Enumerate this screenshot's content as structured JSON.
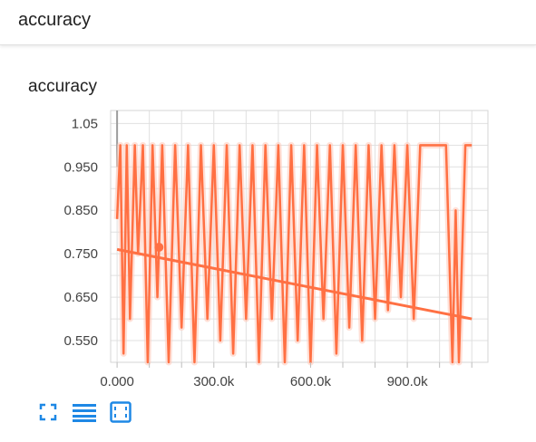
{
  "header": {
    "title": "accuracy"
  },
  "card": {
    "title": "accuracy"
  },
  "colors": {
    "series": "#ff7043",
    "series_faint": "#ffccbc",
    "icon": "#1e88e5",
    "grid": "#e0e0e0"
  },
  "toolbar": {
    "icons": [
      "fullscreen-icon",
      "data-table-icon",
      "fit-domain-icon"
    ]
  },
  "chart_data": {
    "type": "line",
    "title": "accuracy",
    "xlabel": "",
    "ylabel": "",
    "xlim": [
      -20000,
      1150000
    ],
    "ylim": [
      0.5,
      1.08
    ],
    "x_ticks": [
      0,
      300000,
      600000,
      900000
    ],
    "x_tick_labels": [
      "0.000",
      "300.0k",
      "600.0k",
      "900.0k"
    ],
    "y_ticks": [
      0.55,
      0.65,
      0.75,
      0.85,
      0.95,
      1.05
    ],
    "y_tick_labels": [
      "0.550",
      "0.650",
      "0.750",
      "0.850",
      "0.950",
      "1.05"
    ],
    "grid": true,
    "series": [
      {
        "style": "smoothed",
        "x": [
          0,
          10000,
          20000,
          30000,
          40000,
          55000,
          65000,
          80000,
          95000,
          110000,
          125000,
          140000,
          160000,
          180000,
          200000,
          220000,
          240000,
          260000,
          280000,
          300000,
          320000,
          340000,
          360000,
          380000,
          400000,
          420000,
          440000,
          460000,
          480000,
          500000,
          520000,
          540000,
          560000,
          580000,
          600000,
          620000,
          640000,
          660000,
          680000,
          700000,
          720000,
          740000,
          760000,
          780000,
          800000,
          820000,
          840000,
          860000,
          880000,
          900000,
          920000,
          940000,
          960000,
          980000,
          1000000,
          1020000,
          1040000,
          1050000,
          1060000,
          1080000,
          1100000
        ],
        "y": [
          0.83,
          1.0,
          0.52,
          1.0,
          0.6,
          1.0,
          0.75,
          1.0,
          0.5,
          1.0,
          0.65,
          1.0,
          0.5,
          1.0,
          0.58,
          1.0,
          0.5,
          1.0,
          0.6,
          1.0,
          0.55,
          1.0,
          0.52,
          1.0,
          0.6,
          1.0,
          0.5,
          1.0,
          0.6,
          1.0,
          0.5,
          1.0,
          0.55,
          1.0,
          0.5,
          1.0,
          0.6,
          1.0,
          0.52,
          1.0,
          0.58,
          1.0,
          0.55,
          1.0,
          0.6,
          1.0,
          0.62,
          1.0,
          0.65,
          1.0,
          0.6,
          1.0,
          1.0,
          1.0,
          1.0,
          1.0,
          0.5,
          0.85,
          0.5,
          1.0,
          1.0
        ]
      },
      {
        "style": "trend",
        "x": [
          0,
          1100000
        ],
        "y": [
          0.76,
          0.6
        ]
      }
    ],
    "highlight_point": {
      "x": 130000,
      "y": 0.765
    }
  }
}
